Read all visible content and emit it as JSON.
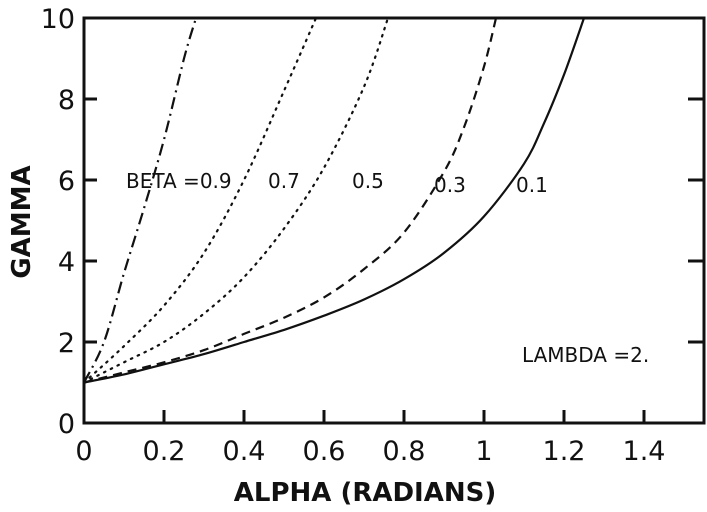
{
  "chart_data": {
    "type": "line",
    "xlabel": "ALPHA (RADIANS)",
    "ylabel": "GAMMA",
    "xlim": [
      0,
      1.55
    ],
    "ylim": [
      0,
      10
    ],
    "x_ticks": [
      0,
      0.2,
      0.4,
      0.6,
      0.8,
      1,
      1.2,
      1.4
    ],
    "x_tick_labels": [
      "0",
      "0.2",
      "0.4",
      "0.6",
      "0.8",
      "1",
      "1.2",
      "1.4"
    ],
    "y_ticks": [
      0,
      2,
      4,
      6,
      8,
      10
    ],
    "y_tick_labels": [
      "0",
      "2",
      "4",
      "6",
      "8",
      "10"
    ],
    "grid": false,
    "series": [
      {
        "name": "0.9",
        "style": "dashdot",
        "x": [
          0,
          0.05,
          0.1,
          0.15,
          0.2,
          0.25,
          0.28
        ],
        "y": [
          1.0,
          2.0,
          3.7,
          5.3,
          7.0,
          9.0,
          10.0
        ]
      },
      {
        "name": "0.7",
        "style": "dotted",
        "x": [
          0,
          0.1,
          0.2,
          0.3,
          0.4,
          0.5,
          0.58
        ],
        "y": [
          1.0,
          1.9,
          2.9,
          4.2,
          6.0,
          8.2,
          10.0
        ]
      },
      {
        "name": "0.5",
        "style": "dotted",
        "x": [
          0,
          0.1,
          0.2,
          0.3,
          0.4,
          0.5,
          0.6,
          0.7,
          0.76
        ],
        "y": [
          1.0,
          1.5,
          2.0,
          2.7,
          3.6,
          4.8,
          6.3,
          8.3,
          10.0
        ]
      },
      {
        "name": "0.3",
        "style": "dashed",
        "x": [
          0,
          0.1,
          0.2,
          0.3,
          0.4,
          0.5,
          0.6,
          0.7,
          0.8,
          0.9,
          0.95,
          1.0,
          1.03
        ],
        "y": [
          1.0,
          1.25,
          1.5,
          1.8,
          2.2,
          2.6,
          3.1,
          3.8,
          4.7,
          6.2,
          7.3,
          8.8,
          10.0
        ]
      },
      {
        "name": "0.1",
        "style": "solid",
        "x": [
          0,
          0.1,
          0.2,
          0.3,
          0.4,
          0.5,
          0.6,
          0.7,
          0.8,
          0.9,
          1.0,
          1.1,
          1.15,
          1.2,
          1.25
        ],
        "y": [
          1.0,
          1.2,
          1.45,
          1.7,
          2.0,
          2.3,
          2.65,
          3.05,
          3.55,
          4.2,
          5.1,
          6.4,
          7.4,
          8.6,
          10.0
        ]
      }
    ],
    "annotations": [
      {
        "id": "beta",
        "text": "BETA =0.9",
        "x": 0.105,
        "y": 6.0
      },
      {
        "id": "b07",
        "text": "0.7",
        "x": 0.46,
        "y": 6.0
      },
      {
        "id": "b05",
        "text": "0.5",
        "x": 0.67,
        "y": 6.0
      },
      {
        "id": "b03",
        "text": "0.3",
        "x": 0.875,
        "y": 5.9
      },
      {
        "id": "b01",
        "text": "0.1",
        "x": 1.08,
        "y": 5.9
      },
      {
        "id": "lambda",
        "text": "LAMBDA =2.",
        "x": 1.095,
        "y": 1.7
      }
    ]
  }
}
